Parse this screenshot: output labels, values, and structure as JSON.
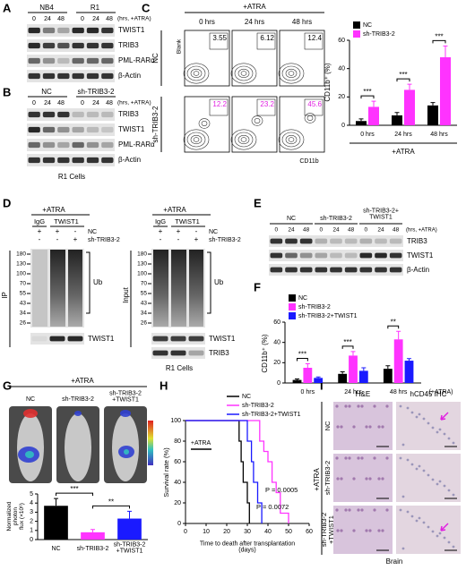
{
  "panels": {
    "A": {
      "letter": "A",
      "headers": [
        "NB4",
        "R1"
      ],
      "times": [
        0,
        24,
        48,
        0,
        24,
        48
      ],
      "unit": "(hrs, +ATRA)",
      "rows": [
        "TWIST1",
        "TRIB3",
        "PML-RARα",
        "β-Actin"
      ]
    },
    "B": {
      "letter": "B",
      "headers": [
        "NC",
        "sh-TRIB3-2"
      ],
      "times": [
        0,
        24,
        48,
        0,
        24,
        48
      ],
      "unit": "(hrs, +ATRA)",
      "rows": [
        "TRIB3",
        "TWIST1",
        "PML-RARα",
        "β-Actin"
      ],
      "footer": "R1 Cells"
    },
    "C": {
      "letter": "C",
      "treatment": "+ATRA",
      "columns": [
        "0 hrs",
        "24 hrs",
        "48 hrs"
      ],
      "rows": [
        "NC",
        "sh-TRIB3-2"
      ],
      "y_label": "Blank",
      "x_label": "CD11b",
      "percentages": [
        [
          3.55,
          6.12,
          12.4
        ],
        [
          12.2,
          23.2,
          45.6
        ]
      ]
    },
    "D": {
      "letter": "D",
      "left": {
        "treatment": "+ATRA",
        "groups": [
          "IgG",
          "TWIST1"
        ],
        "signs": [
          [
            "+",
            "+",
            "-"
          ],
          [
            "-",
            "-",
            "+"
          ]
        ],
        "sign_labels": [
          "NC",
          "sh-TRIB3-2"
        ],
        "markers": [
          180,
          130,
          100,
          70,
          55,
          43,
          34,
          26
        ],
        "smear": "Ub",
        "blots": [
          "TWIST1"
        ],
        "side": "IP"
      },
      "right": {
        "treatment": "+ATRA",
        "groups": [
          "IgG",
          "TWIST1"
        ],
        "signs": [
          [
            "+",
            "+",
            "-"
          ],
          [
            "-",
            "-",
            "+"
          ]
        ],
        "sign_labels": [
          "NC",
          "sh-TRIB3-2"
        ],
        "markers": [
          180,
          130,
          100,
          70,
          55,
          43,
          34,
          26
        ],
        "smear": "Ub",
        "blots": [
          "TWIST1",
          "TRIB3"
        ],
        "side": "Input"
      },
      "footer": "R1 Cells"
    },
    "E": {
      "letter": "E",
      "groups": [
        "NC",
        "sh-TRIB3-2",
        "sh-TRIB3-2+\nTWIST1"
      ],
      "times": [
        0,
        24,
        48,
        0,
        24,
        48,
        0,
        24,
        48
      ],
      "unit": "(hrs, +ATRA)",
      "rows": [
        "TRIB3",
        "TWIST1",
        "β-Actin"
      ]
    },
    "F": {
      "letter": "F"
    },
    "G": {
      "letter": "G",
      "treatment": "+ATRA",
      "groups": [
        "NC",
        "sh-TRIB3-2",
        "sh-TRIB3-2\n+TWIST1"
      ]
    },
    "H": {
      "letter": "H"
    },
    "I": {
      "letter": "I",
      "columns": [
        "H&E",
        "hCD45 IHC"
      ],
      "treatment": "+ATRA",
      "rows": [
        "NC",
        "sh-TRIB3-2",
        "sh-TRIB3-2\n+TWIST1"
      ],
      "footer": "Brain"
    }
  },
  "chart_data": [
    {
      "type": "bar",
      "y_label": "CD11b⁺ (%)",
      "x_label": "+ATRA",
      "categories": [
        "0 hrs",
        "24 hrs",
        "48 hrs"
      ],
      "series": [
        {
          "name": "NC",
          "color": "#000000",
          "values": [
            3,
            7,
            14
          ],
          "errors": [
            1.5,
            2,
            2
          ]
        },
        {
          "name": "sh-TRIB3-2",
          "color": "#ff33ff",
          "values": [
            13,
            25,
            48
          ],
          "errors": [
            4,
            4,
            8
          ]
        }
      ],
      "annotations": [
        "***",
        "***",
        "***"
      ],
      "ylim": [
        0,
        60
      ],
      "yticks": [
        0,
        20,
        40,
        60
      ],
      "legend": "upper left"
    },
    {
      "type": "bar",
      "y_label": "CD11b⁺ (%)",
      "x_label": "(+ATRA)",
      "categories": [
        "0 hrs",
        "24 hrs",
        "48 hrs"
      ],
      "series": [
        {
          "name": "NC",
          "color": "#000000",
          "values": [
            3,
            9,
            14
          ],
          "errors": [
            1,
            2,
            3
          ]
        },
        {
          "name": "sh-TRIB3-2",
          "color": "#ff33ff",
          "values": [
            15,
            27,
            43
          ],
          "errors": [
            4,
            4,
            8
          ]
        },
        {
          "name": "sh-TRIB3-2+TWIST1",
          "color": "#1a1aff",
          "values": [
            5,
            12,
            22
          ],
          "errors": [
            1,
            3,
            2
          ]
        }
      ],
      "annotations": [
        "***",
        "***",
        "**"
      ],
      "ylim": [
        0,
        60
      ],
      "yticks": [
        0,
        20,
        40,
        60
      ],
      "legend": "upper left"
    },
    {
      "type": "bar",
      "y_label": "Normalized\nphoton\nflux (×10⁶)",
      "categories": [
        "NC",
        "sh-TRIB3-2",
        "sh-TRIB3-2\n+TWIST1"
      ],
      "values": [
        3.7,
        0.8,
        2.3
      ],
      "errors": [
        0.8,
        0.3,
        0.8
      ],
      "colors": [
        "#000000",
        "#ff33ff",
        "#1a1aff"
      ],
      "annotations": [
        "***",
        "**"
      ],
      "ylim": [
        0,
        5
      ],
      "yticks": [
        0,
        1,
        2,
        3,
        4,
        5
      ]
    },
    {
      "type": "line",
      "drawstyle": "steps-post",
      "y_label": "Survival rate (%)",
      "x_label": "Time to death after transplantation\n(days)",
      "treatment": "+ATRA",
      "series": [
        {
          "name": "NC",
          "color": "#000000",
          "x": [
            0,
            26,
            27,
            28,
            30,
            31
          ],
          "values": [
            100,
            80,
            60,
            40,
            20,
            0
          ]
        },
        {
          "name": "sh-TRIB3-2",
          "color": "#ff33ff",
          "x": [
            0,
            36,
            38,
            40,
            42,
            44,
            46,
            50
          ],
          "values": [
            100,
            80,
            70,
            60,
            40,
            30,
            10,
            0
          ]
        },
        {
          "name": "sh-TRIB3-2+TWIST1",
          "color": "#1a1aff",
          "x": [
            0,
            30,
            32,
            33,
            35,
            37
          ],
          "values": [
            100,
            80,
            60,
            40,
            20,
            0
          ]
        }
      ],
      "annotations": [
        "P = 0.0005",
        "P = 0.0072"
      ],
      "xlim": [
        0,
        60
      ],
      "xticks": [
        0,
        10,
        20,
        30,
        40,
        50,
        60
      ],
      "ylim": [
        0,
        100
      ],
      "yticks": [
        0,
        20,
        40,
        60,
        80,
        100
      ],
      "legend": "upper right"
    }
  ]
}
